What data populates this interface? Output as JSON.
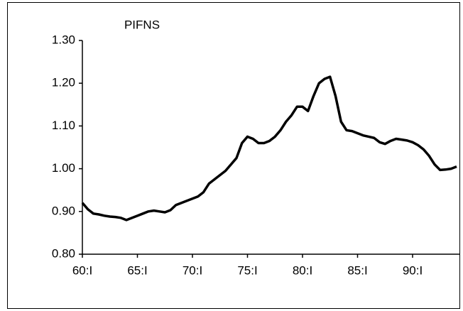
{
  "chart_data": {
    "type": "line",
    "title": "PIFNS",
    "x": [
      60,
      60.5,
      61,
      61.5,
      62,
      62.5,
      63,
      63.5,
      64,
      64.5,
      65,
      65.5,
      66,
      66.5,
      67,
      67.5,
      68,
      68.5,
      69,
      69.5,
      70,
      70.5,
      71,
      71.5,
      72,
      72.5,
      73,
      73.5,
      74,
      74.5,
      75,
      75.5,
      76,
      76.5,
      77,
      77.5,
      78,
      78.5,
      79,
      79.5,
      80,
      80.5,
      81,
      81.5,
      82,
      82.5,
      83,
      83.5,
      84,
      84.5,
      85,
      85.5,
      86,
      86.5,
      87,
      87.5,
      88,
      88.5,
      89,
      89.5,
      90,
      90.5,
      91,
      91.5,
      92,
      92.5,
      93,
      93.5,
      94
    ],
    "series": [
      {
        "name": "PIFNS",
        "color": "#000000",
        "values": [
          0.92,
          0.905,
          0.895,
          0.893,
          0.89,
          0.888,
          0.887,
          0.885,
          0.88,
          0.885,
          0.89,
          0.895,
          0.9,
          0.902,
          0.9,
          0.898,
          0.903,
          0.915,
          0.92,
          0.925,
          0.93,
          0.935,
          0.945,
          0.965,
          0.975,
          0.985,
          0.995,
          1.01,
          1.025,
          1.06,
          1.075,
          1.07,
          1.06,
          1.06,
          1.065,
          1.075,
          1.09,
          1.11,
          1.125,
          1.145,
          1.145,
          1.135,
          1.17,
          1.2,
          1.21,
          1.215,
          1.17,
          1.11,
          1.09,
          1.088,
          1.083,
          1.078,
          1.075,
          1.072,
          1.062,
          1.058,
          1.065,
          1.07,
          1.068,
          1.066,
          1.062,
          1.055,
          1.045,
          1.03,
          1.01,
          0.997,
          0.998,
          1.0,
          1.005
        ]
      }
    ],
    "xlim": [
      60,
      94
    ],
    "xticks": [
      {
        "value": 60,
        "label": "60:I"
      },
      {
        "value": 65,
        "label": "65:I"
      },
      {
        "value": 70,
        "label": "70:I"
      },
      {
        "value": 75,
        "label": "75:I"
      },
      {
        "value": 80,
        "label": "80:I"
      },
      {
        "value": 85,
        "label": "85:I"
      },
      {
        "value": 90,
        "label": "90:I"
      }
    ],
    "ylim": [
      0.8,
      1.3
    ],
    "yticks": [
      {
        "value": 0.8,
        "label": "0.80"
      },
      {
        "value": 0.9,
        "label": "0.90"
      },
      {
        "value": 1.0,
        "label": "1.00"
      },
      {
        "value": 1.1,
        "label": "1.10"
      },
      {
        "value": 1.2,
        "label": "1.20"
      },
      {
        "value": 1.3,
        "label": "1.30"
      }
    ],
    "grid": false
  }
}
